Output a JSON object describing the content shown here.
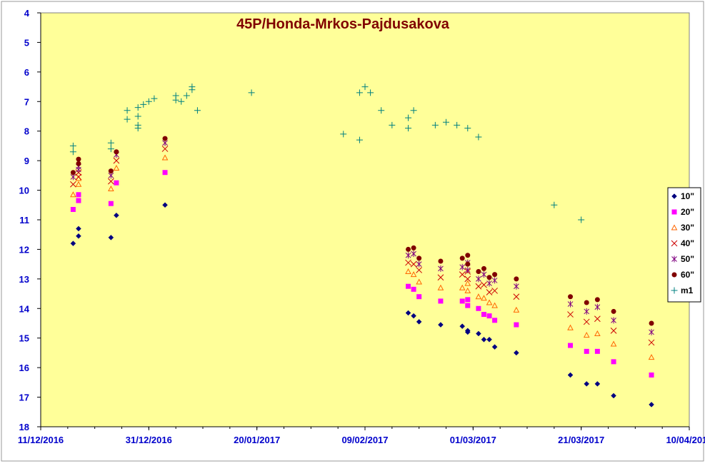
{
  "chart_data": {
    "type": "scatter",
    "title": "45P/Honda-Mrkos-Pajdusakova",
    "xlabel": "",
    "ylabel": "",
    "x_tick_labels": [
      "11/12/2016",
      "31/12/2016",
      "20/01/2017",
      "09/02/2017",
      "01/03/2017",
      "21/03/2017",
      "10/04/2017"
    ],
    "xlim": [
      "2016-12-11",
      "2017-04-10"
    ],
    "ylim": [
      18,
      4
    ],
    "y_tick_labels": [
      "4",
      "5",
      "6",
      "7",
      "8",
      "9",
      "10",
      "11",
      "12",
      "13",
      "14",
      "15",
      "16",
      "17",
      "18"
    ],
    "y_inverted": true,
    "grid": false,
    "legend_position": "right",
    "colors": {
      "plot_bg": "#ffff99",
      "axis": "#000000",
      "tick_text": "#0000cc",
      "title": "#800000",
      "frame_bg": "#ffffff"
    },
    "series": [
      {
        "name": "10\"",
        "marker": "diamond",
        "color": "#000080",
        "points": [
          [
            "2016-12-17",
            11.8
          ],
          [
            "2016-12-18",
            11.55
          ],
          [
            "2016-12-18",
            11.3
          ],
          [
            "2016-12-24",
            11.6
          ],
          [
            "2016-12-25",
            10.85
          ],
          [
            "2017-01-03",
            10.5
          ],
          [
            "2017-02-17",
            14.15
          ],
          [
            "2017-02-18",
            14.25
          ],
          [
            "2017-02-19",
            14.45
          ],
          [
            "2017-02-23",
            14.55
          ],
          [
            "2017-02-27",
            14.6
          ],
          [
            "2017-02-28",
            14.8
          ],
          [
            "2017-02-28",
            14.75
          ],
          [
            "2017-03-02",
            14.85
          ],
          [
            "2017-03-03",
            15.05
          ],
          [
            "2017-03-04",
            15.05
          ],
          [
            "2017-03-05",
            15.3
          ],
          [
            "2017-03-09",
            15.5
          ],
          [
            "2017-03-19",
            16.25
          ],
          [
            "2017-03-22",
            16.55
          ],
          [
            "2017-03-24",
            16.55
          ],
          [
            "2017-03-27",
            16.95
          ],
          [
            "2017-04-03",
            17.25
          ]
        ]
      },
      {
        "name": "20\"",
        "marker": "square",
        "color": "#ff00ff",
        "points": [
          [
            "2016-12-17",
            10.65
          ],
          [
            "2016-12-18",
            10.35
          ],
          [
            "2016-12-18",
            10.15
          ],
          [
            "2016-12-24",
            10.45
          ],
          [
            "2016-12-25",
            9.75
          ],
          [
            "2017-01-03",
            9.4
          ],
          [
            "2017-02-17",
            13.25
          ],
          [
            "2017-02-18",
            13.35
          ],
          [
            "2017-02-19",
            13.6
          ],
          [
            "2017-02-23",
            13.75
          ],
          [
            "2017-02-27",
            13.75
          ],
          [
            "2017-02-28",
            13.9
          ],
          [
            "2017-02-28",
            13.7
          ],
          [
            "2017-03-02",
            14.0
          ],
          [
            "2017-03-03",
            14.2
          ],
          [
            "2017-03-04",
            14.25
          ],
          [
            "2017-03-05",
            14.4
          ],
          [
            "2017-03-09",
            14.55
          ],
          [
            "2017-03-19",
            15.25
          ],
          [
            "2017-03-22",
            15.45
          ],
          [
            "2017-03-24",
            15.45
          ],
          [
            "2017-03-27",
            15.8
          ],
          [
            "2017-04-03",
            16.25
          ]
        ]
      },
      {
        "name": "30\"",
        "marker": "triangle",
        "color": "#ff6600",
        "points": [
          [
            "2016-12-17",
            10.15
          ],
          [
            "2016-12-18",
            9.8
          ],
          [
            "2016-12-18",
            9.6
          ],
          [
            "2016-12-24",
            9.95
          ],
          [
            "2016-12-25",
            9.25
          ],
          [
            "2017-01-03",
            8.9
          ],
          [
            "2017-02-17",
            12.75
          ],
          [
            "2017-02-18",
            12.85
          ],
          [
            "2017-02-19",
            13.1
          ],
          [
            "2017-02-23",
            13.3
          ],
          [
            "2017-02-27",
            13.3
          ],
          [
            "2017-02-28",
            13.4
          ],
          [
            "2017-02-28",
            13.15
          ],
          [
            "2017-03-02",
            13.6
          ],
          [
            "2017-03-03",
            13.65
          ],
          [
            "2017-03-04",
            13.8
          ],
          [
            "2017-03-05",
            13.9
          ],
          [
            "2017-03-09",
            14.05
          ],
          [
            "2017-03-19",
            14.65
          ],
          [
            "2017-03-22",
            14.9
          ],
          [
            "2017-03-24",
            14.85
          ],
          [
            "2017-03-27",
            15.2
          ],
          [
            "2017-04-03",
            15.65
          ]
        ]
      },
      {
        "name": "40\"",
        "marker": "x",
        "color": "#cc0000",
        "points": [
          [
            "2016-12-17",
            9.8
          ],
          [
            "2016-12-18",
            9.55
          ],
          [
            "2016-12-18",
            9.4
          ],
          [
            "2016-12-24",
            9.7
          ],
          [
            "2016-12-25",
            9.0
          ],
          [
            "2017-01-03",
            8.6
          ],
          [
            "2017-02-17",
            12.45
          ],
          [
            "2017-02-18",
            12.5
          ],
          [
            "2017-02-19",
            12.7
          ],
          [
            "2017-02-23",
            12.95
          ],
          [
            "2017-02-27",
            12.85
          ],
          [
            "2017-02-28",
            13.0
          ],
          [
            "2017-02-28",
            12.75
          ],
          [
            "2017-03-02",
            13.25
          ],
          [
            "2017-03-03",
            13.2
          ],
          [
            "2017-03-04",
            13.45
          ],
          [
            "2017-03-05",
            13.4
          ],
          [
            "2017-03-09",
            13.6
          ],
          [
            "2017-03-19",
            14.2
          ],
          [
            "2017-03-22",
            14.45
          ],
          [
            "2017-03-24",
            14.35
          ],
          [
            "2017-03-27",
            14.75
          ],
          [
            "2017-04-03",
            15.15
          ]
        ]
      },
      {
        "name": "50\"",
        "marker": "star",
        "color": "#800080",
        "points": [
          [
            "2016-12-17",
            9.55
          ],
          [
            "2016-12-18",
            9.3
          ],
          [
            "2016-12-18",
            9.2
          ],
          [
            "2016-12-24",
            9.5
          ],
          [
            "2016-12-25",
            8.8
          ],
          [
            "2017-01-03",
            8.4
          ],
          [
            "2017-02-17",
            12.2
          ],
          [
            "2017-02-18",
            12.15
          ],
          [
            "2017-02-19",
            12.5
          ],
          [
            "2017-02-23",
            12.65
          ],
          [
            "2017-02-27",
            12.6
          ],
          [
            "2017-02-28",
            12.7
          ],
          [
            "2017-02-28",
            12.45
          ],
          [
            "2017-03-02",
            13.0
          ],
          [
            "2017-03-03",
            12.85
          ],
          [
            "2017-03-04",
            13.15
          ],
          [
            "2017-03-05",
            13.05
          ],
          [
            "2017-03-09",
            13.25
          ],
          [
            "2017-03-19",
            13.85
          ],
          [
            "2017-03-22",
            14.1
          ],
          [
            "2017-03-24",
            13.95
          ],
          [
            "2017-03-27",
            14.4
          ],
          [
            "2017-04-03",
            14.8
          ]
        ]
      },
      {
        "name": "60\"",
        "marker": "circle",
        "color": "#800000",
        "points": [
          [
            "2016-12-17",
            9.4
          ],
          [
            "2016-12-18",
            9.1
          ],
          [
            "2016-12-18",
            8.95
          ],
          [
            "2016-12-24",
            9.35
          ],
          [
            "2016-12-25",
            8.7
          ],
          [
            "2017-01-03",
            8.25
          ],
          [
            "2017-02-17",
            12.0
          ],
          [
            "2017-02-18",
            11.95
          ],
          [
            "2017-02-19",
            12.3
          ],
          [
            "2017-02-23",
            12.4
          ],
          [
            "2017-02-27",
            12.3
          ],
          [
            "2017-02-28",
            12.5
          ],
          [
            "2017-02-28",
            12.2
          ],
          [
            "2017-03-02",
            12.75
          ],
          [
            "2017-03-03",
            12.65
          ],
          [
            "2017-03-04",
            12.95
          ],
          [
            "2017-03-05",
            12.85
          ],
          [
            "2017-03-09",
            13.0
          ],
          [
            "2017-03-19",
            13.6
          ],
          [
            "2017-03-22",
            13.8
          ],
          [
            "2017-03-24",
            13.7
          ],
          [
            "2017-03-27",
            14.1
          ],
          [
            "2017-04-03",
            14.5
          ]
        ]
      },
      {
        "name": "m1",
        "marker": "plus",
        "color": "#008080",
        "points": [
          [
            "2016-12-17",
            8.5
          ],
          [
            "2016-12-17",
            8.7
          ],
          [
            "2016-12-24",
            8.4
          ],
          [
            "2016-12-24",
            8.6
          ],
          [
            "2016-12-27",
            7.6
          ],
          [
            "2016-12-27",
            7.3
          ],
          [
            "2016-12-29",
            7.5
          ],
          [
            "2016-12-29",
            7.2
          ],
          [
            "2016-12-29",
            7.8
          ],
          [
            "2016-12-29",
            7.9
          ],
          [
            "2016-12-30",
            7.1
          ],
          [
            "2016-12-31",
            7.0
          ],
          [
            "2017-01-01",
            6.9
          ],
          [
            "2017-01-05",
            6.8
          ],
          [
            "2017-01-05",
            6.95
          ],
          [
            "2017-01-06",
            7.0
          ],
          [
            "2017-01-07",
            6.8
          ],
          [
            "2017-01-08",
            6.5
          ],
          [
            "2017-01-08",
            6.6
          ],
          [
            "2017-01-09",
            7.3
          ],
          [
            "2017-01-19",
            6.7
          ],
          [
            "2017-02-05",
            8.1
          ],
          [
            "2017-02-08",
            8.3
          ],
          [
            "2017-02-08",
            6.7
          ],
          [
            "2017-02-09",
            6.5
          ],
          [
            "2017-02-10",
            6.7
          ],
          [
            "2017-02-12",
            7.3
          ],
          [
            "2017-02-14",
            7.8
          ],
          [
            "2017-02-17",
            7.55
          ],
          [
            "2017-02-17",
            7.9
          ],
          [
            "2017-02-18",
            7.3
          ],
          [
            "2017-02-22",
            7.8
          ],
          [
            "2017-02-24",
            7.7
          ],
          [
            "2017-02-26",
            7.8
          ],
          [
            "2017-02-28",
            7.9
          ],
          [
            "2017-03-02",
            8.2
          ],
          [
            "2017-03-16",
            10.5
          ],
          [
            "2017-03-21",
            11.0
          ]
        ]
      }
    ]
  }
}
